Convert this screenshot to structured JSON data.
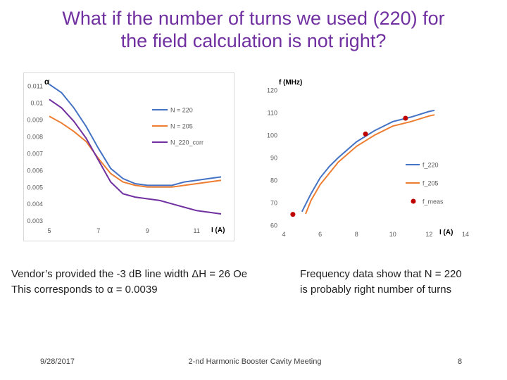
{
  "slide": {
    "title_line1": "What if the number of turns we used (220) for",
    "title_line2": "the field calculation is not right?",
    "note_left_line1": "Vendor’s provided the -3 dB line width ΔH = 26 Oe",
    "note_left_line2": "This corresponds to α = 0.0039",
    "note_right_line1": "Frequency data show that N = 220",
    "note_right_line2": "is probably right number of turns",
    "footer_date": "9/28/2017",
    "footer_center": "2-nd Harmonic Booster Cavity Meeting",
    "footer_page": "8"
  },
  "chart_data": [
    {
      "type": "line",
      "ylabel": "α",
      "xlabel": "I (A)",
      "xlim": [
        5,
        12.2
      ],
      "ylim": [
        0.0029,
        0.0113
      ],
      "xticks": [
        5,
        7,
        9,
        11
      ],
      "yticks": [
        0.011,
        0.01,
        0.009,
        0.008,
        0.007,
        0.006,
        0.005,
        0.004,
        0.003
      ],
      "ytick_labels": [
        "0.011",
        "0.01",
        "0.009",
        "0.008",
        "0.007",
        "0.006",
        "0.005",
        "0.004",
        "0.003"
      ],
      "grid": false,
      "legend_position": "right",
      "series": [
        {
          "name": "N = 220",
          "color": "#4472c4",
          "x": [
            5.0,
            5.5,
            6.0,
            6.5,
            7.0,
            7.5,
            8.0,
            8.5,
            9.0,
            9.5,
            10.0,
            10.5,
            11.0,
            11.5,
            12.0
          ],
          "y": [
            0.0111,
            0.0106,
            0.0097,
            0.0086,
            0.0073,
            0.0061,
            0.0055,
            0.0052,
            0.0051,
            0.0051,
            0.0051,
            0.0053,
            0.0054,
            0.0055,
            0.0056
          ]
        },
        {
          "name": "N = 205",
          "color": "#ed7d31",
          "x": [
            5.0,
            5.5,
            6.0,
            6.5,
            7.0,
            7.5,
            8.0,
            8.5,
            9.0,
            9.5,
            10.0,
            10.5,
            11.0,
            11.5,
            12.0
          ],
          "y": [
            0.0092,
            0.0088,
            0.0083,
            0.0077,
            0.0067,
            0.0058,
            0.0053,
            0.0051,
            0.005,
            0.005,
            0.005,
            0.0051,
            0.0052,
            0.0053,
            0.0054
          ]
        },
        {
          "name": "N_220_corr",
          "color": "#7030a0",
          "x": [
            5.0,
            5.5,
            6.0,
            6.5,
            7.0,
            7.5,
            8.0,
            8.5,
            9.0,
            9.5,
            10.0,
            10.5,
            11.0,
            11.5,
            12.0
          ],
          "y": [
            0.0102,
            0.0097,
            0.0089,
            0.0079,
            0.0066,
            0.0053,
            0.0046,
            0.0044,
            0.0043,
            0.0042,
            0.004,
            0.0038,
            0.0036,
            0.0035,
            0.0034
          ]
        }
      ]
    },
    {
      "type": "line",
      "ylabel": "f (MHz)",
      "xlabel": "I (A)",
      "xlim": [
        4,
        14
      ],
      "ylim": [
        60,
        120
      ],
      "xticks": [
        4,
        6,
        8,
        10,
        12,
        14
      ],
      "yticks": [
        60,
        70,
        80,
        90,
        100,
        110,
        120
      ],
      "grid": false,
      "legend_position": "right",
      "series": [
        {
          "name": "f_220",
          "color": "#4472c4",
          "style": "line",
          "x": [
            5.0,
            5.5,
            6.0,
            6.5,
            7.0,
            8.0,
            9.0,
            10.0,
            11.0,
            12.0,
            12.3
          ],
          "y": [
            66,
            74,
            81,
            86,
            90,
            97,
            102,
            106,
            108,
            110.5,
            111
          ]
        },
        {
          "name": "f_205",
          "color": "#ed7d31",
          "style": "line",
          "x": [
            5.2,
            5.5,
            6.0,
            6.5,
            7.0,
            8.0,
            9.0,
            10.0,
            11.0,
            12.0,
            12.3
          ],
          "y": [
            65,
            71,
            78,
            83,
            88,
            95,
            100,
            104,
            106,
            108.5,
            109
          ]
        },
        {
          "name": "f_meas",
          "color": "#c00000",
          "style": "markers",
          "x": [
            4.5,
            8.5,
            10.7
          ],
          "y": [
            64.8,
            100.5,
            107.5
          ]
        }
      ]
    }
  ]
}
